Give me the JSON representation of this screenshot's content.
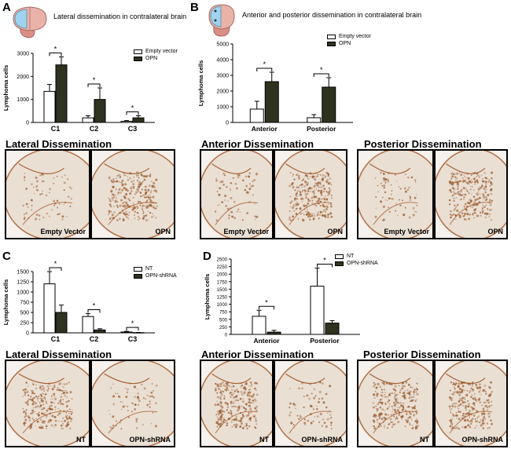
{
  "colors": {
    "control": "#ffffff",
    "treated": "#2e3320",
    "stroke": "#000000",
    "tissue_bg": "#efe6dd",
    "stain": "#9a5a2c",
    "brain_pink": "#e9b3a9",
    "brain_blue": "#9fd3ef"
  },
  "panels": [
    {
      "label": "A",
      "title": "Lateral dissemination in contralateral brain"
    },
    {
      "label": "B",
      "title": "Anterior and posterior dissemination in contralateral brain"
    },
    {
      "label": "C",
      "title": ""
    },
    {
      "label": "D",
      "title": ""
    }
  ],
  "section_titles": {
    "a_lateral": "Lateral Dissemination",
    "b_anterior": "Anterior Dissemination",
    "b_posterior": "Posterior Dissemination",
    "c_lateral": "Lateral Dissemination",
    "d_anterior": "Anterior Dissemination",
    "d_posterior": "Posterior Dissemination"
  },
  "image_labels": {
    "a1": "Empty Vector",
    "a2": "OPN",
    "b1": "Empty Vector",
    "b2": "OPN",
    "b3": "Empty Vector",
    "b4": "OPN",
    "c1": "NT",
    "c2": "OPN-shRNA",
    "d1": "NT",
    "d2": "OPN-shRNA",
    "d3": "NT",
    "d4": "OPN-shRNA"
  },
  "chart_data": [
    {
      "id": "A",
      "type": "bar",
      "title": "Lateral dissemination in contralateral brain",
      "ylabel": "Lymphoma cells",
      "xlabel": "",
      "ylim": [
        0,
        3000
      ],
      "yticks": [
        0,
        1000,
        2000,
        3000
      ],
      "categories": [
        "C1",
        "C2",
        "C3"
      ],
      "series": [
        {
          "name": "Empty vector",
          "values": [
            1350,
            200,
            50
          ],
          "errors": [
            300,
            90,
            30
          ]
        },
        {
          "name": "OPN",
          "values": [
            2500,
            1000,
            200
          ],
          "errors": [
            350,
            500,
            90
          ]
        }
      ],
      "significance": [
        "*",
        "*",
        "*"
      ],
      "legend_position": "top-right"
    },
    {
      "id": "B",
      "type": "bar",
      "title": "Anterior and posterior dissemination in contralateral brain",
      "ylabel": "Lymphoma cells",
      "xlabel": "",
      "ylim": [
        0,
        5000
      ],
      "yticks": [
        0,
        1000,
        2000,
        3000,
        4000,
        5000
      ],
      "categories": [
        "Anterior",
        "Posterior"
      ],
      "series": [
        {
          "name": "Empty vector",
          "values": [
            850,
            300
          ],
          "errors": [
            500,
            200
          ]
        },
        {
          "name": "OPN",
          "values": [
            2600,
            2250
          ],
          "errors": [
            600,
            600
          ]
        }
      ],
      "significance": [
        "*",
        "*"
      ],
      "legend_position": "top-right"
    },
    {
      "id": "C",
      "type": "bar",
      "title": "",
      "ylabel": "Lymphoma cells",
      "xlabel": "",
      "ylim": [
        0,
        1500
      ],
      "yticks": [
        0,
        250,
        500,
        750,
        1000,
        1250,
        1500
      ],
      "categories": [
        "C1",
        "C2",
        "C3"
      ],
      "series": [
        {
          "name": "NT",
          "values": [
            1200,
            400,
            20
          ],
          "errors": [
            300,
            70,
            15
          ]
        },
        {
          "name": "OPN-shRNA",
          "values": [
            500,
            70,
            5
          ],
          "errors": [
            180,
            30,
            5
          ]
        }
      ],
      "significance": [
        "*",
        "*",
        "*"
      ],
      "legend_position": "top-right"
    },
    {
      "id": "D",
      "type": "bar",
      "title": "",
      "ylabel": "Lymphoma cells",
      "xlabel": "",
      "ylim": [
        0,
        2500
      ],
      "yticks": [
        0,
        250,
        500,
        750,
        1000,
        1250,
        1500,
        1750,
        2000,
        2250,
        2500
      ],
      "categories": [
        "Anterior",
        "Posterior"
      ],
      "series": [
        {
          "name": "NT",
          "values": [
            600,
            1600
          ],
          "errors": [
            200,
            600
          ]
        },
        {
          "name": "OPN-shRNA",
          "values": [
            75,
            375
          ],
          "errors": [
            60,
            80
          ]
        }
      ],
      "significance": [
        "*",
        "*"
      ],
      "legend_position": "top-right"
    }
  ]
}
